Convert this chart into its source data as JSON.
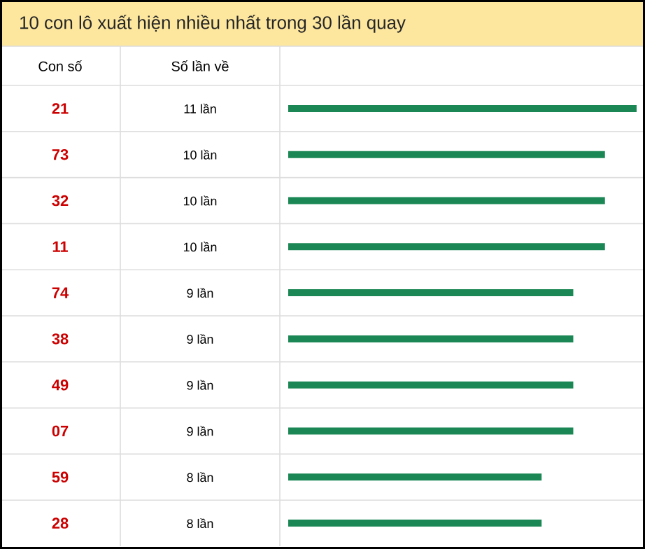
{
  "chart_data": {
    "type": "bar",
    "orientation": "horizontal",
    "title": "10 con lô xuất hiện nhiều nhất trong 30 lần quay",
    "annotations": [
      "Con số",
      "Số lần về"
    ],
    "categories": [
      "21",
      "73",
      "32",
      "11",
      "74",
      "38",
      "49",
      "07",
      "59",
      "28"
    ],
    "values": [
      11,
      10,
      10,
      10,
      9,
      9,
      9,
      9,
      8,
      8
    ],
    "value_labels": [
      "11 lần",
      "10 lần",
      "10 lần",
      "10 lần",
      "9 lần",
      "9 lần",
      "9 lần",
      "9 lần",
      "8 lần",
      "8 lần"
    ],
    "color": "#1b8755"
  }
}
